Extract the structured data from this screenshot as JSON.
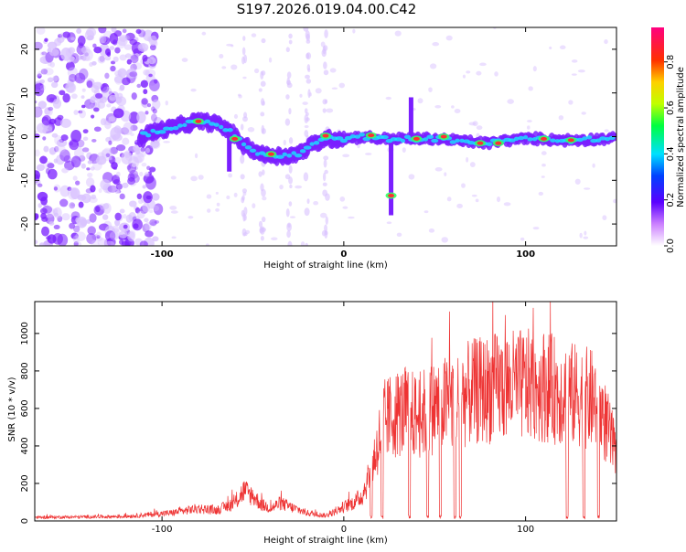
{
  "title": "S197.2026.019.04.00.C42",
  "colors": {
    "line": "#ee3333",
    "spectrogram_blob": "#7a1fff",
    "spectrogram_faint": "#d9c2ff",
    "ridge_hot": "#ff3030",
    "ridge_cyan": "#15e6ff"
  },
  "chart_data": [
    {
      "type": "heatmap",
      "xlabel": "Height of straight line (km)",
      "ylabel": "Frequency (Hz)",
      "xlim": [
        -170,
        150
      ],
      "ylim": [
        -25,
        25
      ],
      "xticks": [
        -100,
        0,
        100
      ],
      "yticks": [
        -20,
        -10,
        0,
        10,
        20
      ],
      "colorbar": {
        "label": "Normalized spectral amplitude",
        "range": [
          0,
          0.95
        ],
        "ticks": [
          0.0,
          0.2,
          0.4,
          0.6,
          0.8
        ],
        "tick_labels": [
          "0.0",
          "0.2",
          "0.4",
          "0.6",
          "0.8"
        ]
      },
      "ridge": [
        [
          -110,
          0.5
        ],
        [
          -100,
          1.5
        ],
        [
          -90,
          2.5
        ],
        [
          -80,
          3.5
        ],
        [
          -70,
          3
        ],
        [
          -62,
          1
        ],
        [
          -55,
          -2
        ],
        [
          -45,
          -4
        ],
        [
          -35,
          -4.5
        ],
        [
          -25,
          -4
        ],
        [
          -18,
          -2
        ],
        [
          -10,
          -0.5
        ],
        [
          0,
          -0.5
        ],
        [
          10,
          0
        ],
        [
          20,
          -0.5
        ],
        [
          28,
          -0.5
        ],
        [
          40,
          -0.5
        ],
        [
          50,
          -0.5
        ],
        [
          60,
          -0.8
        ],
        [
          70,
          -1.2
        ],
        [
          80,
          -1.5
        ],
        [
          90,
          -0.8
        ],
        [
          100,
          -0.5
        ],
        [
          110,
          -0.5
        ],
        [
          120,
          -0.8
        ],
        [
          130,
          -0.8
        ],
        [
          140,
          -0.5
        ],
        [
          148,
          -0.5
        ]
      ],
      "hot_spots": [
        [
          -80,
          3.5
        ],
        [
          -60,
          -0.5
        ],
        [
          -40,
          -4
        ],
        [
          -10,
          0.2
        ],
        [
          15,
          0.3
        ],
        [
          26,
          -13.5
        ],
        [
          40,
          -0.5
        ],
        [
          55,
          0
        ],
        [
          75,
          -1.5
        ],
        [
          85,
          -1.5
        ],
        [
          110,
          -0.5
        ],
        [
          125,
          -0.8
        ]
      ],
      "spikes": [
        {
          "x": 26,
          "from": -18,
          "to": 0
        },
        {
          "x": 37,
          "from": 0,
          "to": 9
        },
        {
          "x": -63,
          "from": -8,
          "to": 3
        }
      ]
    },
    {
      "type": "line",
      "xlabel": "Height of straight line (km)",
      "ylabel": "SNR (10 * v/v)",
      "xlim": [
        -170,
        150
      ],
      "ylim": [
        0,
        1170
      ],
      "xticks": [
        -100,
        0,
        100
      ],
      "yticks": [
        0,
        200,
        400,
        600,
        800,
        1000
      ],
      "series": [
        {
          "envelope": [
            [
              -170,
              20
            ],
            [
              -120,
              25
            ],
            [
              -95,
              45
            ],
            [
              -80,
              70
            ],
            [
              -70,
              60
            ],
            [
              -60,
              100
            ],
            [
              -55,
              170
            ],
            [
              -50,
              140
            ],
            [
              -45,
              90
            ],
            [
              -40,
              70
            ],
            [
              -35,
              100
            ],
            [
              -30,
              80
            ],
            [
              -20,
              45
            ],
            [
              -10,
              30
            ],
            [
              -5,
              50
            ],
            [
              0,
              80
            ],
            [
              5,
              100
            ],
            [
              10,
              140
            ],
            [
              14,
              250
            ],
            [
              18,
              400
            ],
            [
              22,
              560
            ],
            [
              28,
              600
            ],
            [
              35,
              620
            ],
            [
              40,
              580
            ],
            [
              50,
              640
            ],
            [
              60,
              670
            ],
            [
              70,
              720
            ],
            [
              80,
              740
            ],
            [
              90,
              760
            ],
            [
              100,
              760
            ],
            [
              110,
              760
            ],
            [
              120,
              720
            ],
            [
              130,
              700
            ],
            [
              140,
              670
            ],
            [
              145,
              520
            ],
            [
              150,
              350
            ]
          ],
          "dropouts": [
            15,
            21,
            36,
            46,
            53,
            61,
            64,
            123,
            132,
            140
          ]
        }
      ]
    }
  ]
}
